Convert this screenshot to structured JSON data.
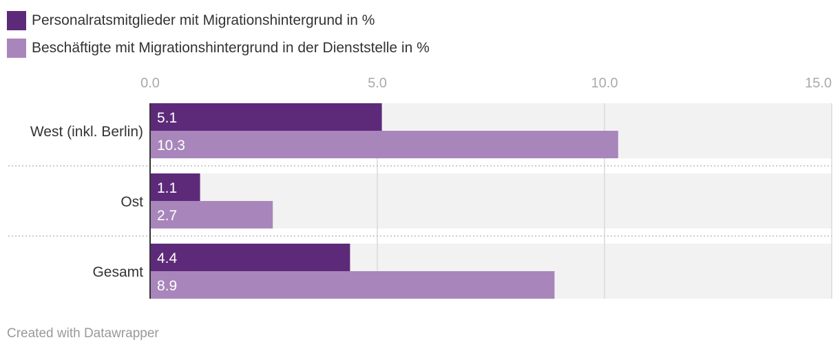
{
  "legend": {
    "items": [
      {
        "label": "Personalratsmitglieder mit Migrationshintergrund in %",
        "color": "#5d2a7a"
      },
      {
        "label": "Beschäftigte mit Migrationshintergrund in der Dienststelle in %",
        "color": "#a886bb"
      }
    ]
  },
  "chart_data": {
    "type": "bar",
    "orientation": "horizontal",
    "title": "",
    "xlabel": "",
    "ylabel": "",
    "xlim": [
      0,
      15
    ],
    "ticks": [
      0,
      5,
      10,
      15
    ],
    "tick_labels": [
      "0.0",
      "5.0",
      "10.0",
      "15.0"
    ],
    "grid": true,
    "categories": [
      "West (inkl. Berlin)",
      "Ost",
      "Gesamt"
    ],
    "series": [
      {
        "name": "Personalratsmitglieder mit Migrationshintergrund in %",
        "color": "#5d2a7a",
        "values": [
          5.1,
          1.1,
          4.4
        ],
        "labels": [
          "5.1",
          "1.1",
          "4.4"
        ]
      },
      {
        "name": "Beschäftigte mit Migrationshintergrund in der Dienststelle in %",
        "color": "#a886bb",
        "values": [
          10.3,
          2.7,
          8.9
        ],
        "labels": [
          "10.3",
          "2.7",
          "8.9"
        ]
      }
    ]
  },
  "footer": {
    "credit": "Created with Datawrapper"
  }
}
